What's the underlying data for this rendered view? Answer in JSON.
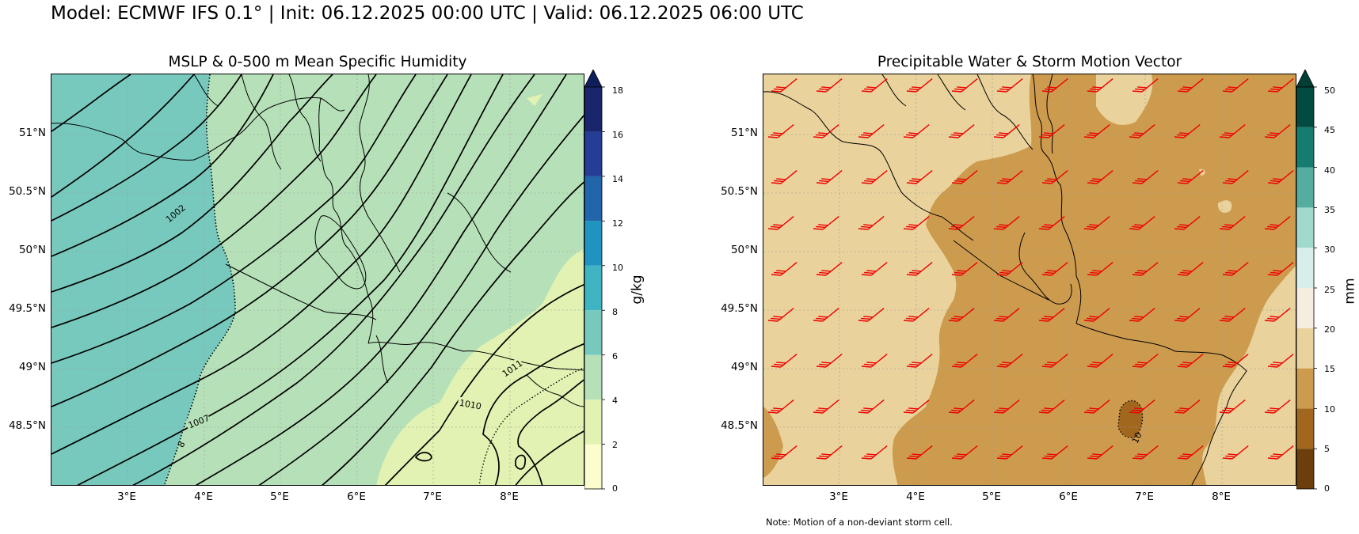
{
  "title": "Model: ECMWF IFS 0.1° | Init: 06.12.2025 00:00 UTC | Valid: 06.12.2025 06:00 UTC",
  "left_panel": {
    "title": "MSLP & 0-500 m Mean Specific Humidity",
    "colorbar": {
      "unit": "g/kg",
      "ticks": [
        "0",
        "2",
        "4",
        "6",
        "8",
        "10",
        "12",
        "14",
        "16",
        "18"
      ],
      "colors": [
        "#fbfdcf",
        "#e1f2b2",
        "#b6e1b8",
        "#77c9bd",
        "#3fb5c3",
        "#1f94c0",
        "#2165aa",
        "#253e95",
        "#19266b"
      ],
      "extend_color": "#0f1e5c"
    },
    "contour_labels": [
      "1002",
      "1007",
      "1010",
      "1011",
      "8"
    ]
  },
  "right_panel": {
    "title": "Precipitable Water & Storm Motion Vector",
    "colorbar": {
      "unit": "mm",
      "ticks": [
        "0",
        "5",
        "10",
        "15",
        "20",
        "25",
        "30",
        "35",
        "40",
        "45",
        "50"
      ],
      "colors": [
        "#6b3e0b",
        "#a2671f",
        "#cd9b4e",
        "#e9d29b",
        "#f5eddd",
        "#d8eeea",
        "#a1d9cf",
        "#55ada0",
        "#167c70",
        "#034b40"
      ],
      "extend_color": "#013e33"
    },
    "contour_labels": [
      "10"
    ],
    "barb_color": "#ee0000",
    "note": "Note: Motion of a non-deviant storm cell."
  },
  "axes": {
    "lat_labels": [
      "51°N",
      "50.5°N",
      "50°N",
      "49.5°N",
      "49°N",
      "48.5°N"
    ],
    "lon_labels": [
      "3°E",
      "4°E",
      "5°E",
      "6°E",
      "7°E",
      "8°E"
    ]
  }
}
